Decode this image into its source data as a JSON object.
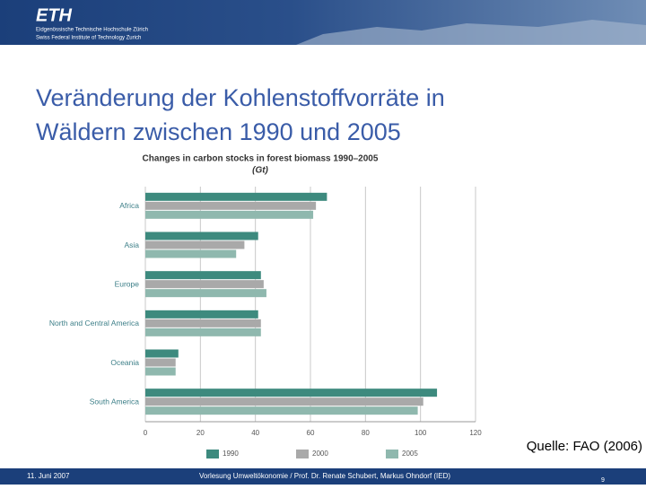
{
  "header": {
    "logo": "ETH",
    "line1": "Eidgenössische Technische Hochschule Zürich",
    "line2": "Swiss Federal Institute of Technology Zurich"
  },
  "slide_title": [
    "Veränderung der Kohlenstoffvorräte in",
    "Wäldern zwischen 1990 und 2005"
  ],
  "source": "Quelle: FAO (2006)",
  "footer": {
    "date": "11. Juni 2007",
    "course": "Vorlesung Umweltökonomie / Prof. Dr. Renate Schubert, Markus Ohndorf (IED)",
    "page": "9"
  },
  "chart_data": {
    "type": "hbar",
    "title": "Changes in carbon stocks in forest biomass 1990–2005",
    "subtitle": "(Gt)",
    "categories": [
      "Africa",
      "Asia",
      "Europe",
      "North and Central America",
      "Oceania",
      "South America"
    ],
    "series": [
      {
        "name": "1990",
        "color": "#3d8a7e",
        "values": [
          66,
          41,
          42,
          41,
          12,
          106
        ]
      },
      {
        "name": "2000",
        "color": "#a9a9a9",
        "values": [
          62,
          36,
          43,
          42,
          11,
          101
        ]
      },
      {
        "name": "2005",
        "color": "#8fb8ae",
        "values": [
          61,
          33,
          44,
          42,
          11,
          99
        ]
      }
    ],
    "xlim": [
      0,
      120
    ],
    "xticks": [
      0,
      20,
      40,
      60,
      80,
      100,
      120
    ],
    "grid": true,
    "legend": "bottom"
  }
}
